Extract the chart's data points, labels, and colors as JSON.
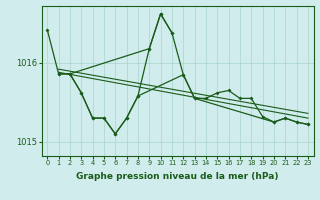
{
  "xlabel": "Graphe pression niveau de la mer (hPa)",
  "background_color": "#d1ecec",
  "grid_color": "#a8d5cc",
  "line_color": "#1a5c1a",
  "x_ticks": [
    0,
    1,
    2,
    3,
    4,
    5,
    6,
    7,
    8,
    9,
    10,
    11,
    12,
    13,
    14,
    15,
    16,
    17,
    18,
    19,
    20,
    21,
    22,
    23
  ],
  "ylim": [
    1014.82,
    1016.72
  ],
  "yticks": [
    1015.0,
    1016.0
  ],
  "series1_x": [
    0,
    1,
    2,
    9,
    10,
    11
  ],
  "series1_y": [
    1016.42,
    1015.86,
    1015.86,
    1016.18,
    1016.62,
    1016.38
  ],
  "series2_x": [
    1,
    2,
    3,
    4,
    5,
    6,
    7,
    8,
    9,
    10,
    11,
    12,
    13,
    20,
    21,
    22,
    23
  ],
  "series2_y": [
    1015.86,
    1015.86,
    1015.62,
    1015.3,
    1015.3,
    1015.1,
    1015.3,
    1015.58,
    1016.18,
    1016.62,
    1016.38,
    1015.85,
    1015.55,
    1015.25,
    1015.3,
    1015.25,
    1015.22
  ],
  "series3_x": [
    2,
    3,
    4,
    5,
    6,
    7,
    8,
    12,
    13,
    14,
    15,
    16,
    17,
    18,
    19,
    20,
    21,
    22,
    23
  ],
  "series3_y": [
    1015.86,
    1015.62,
    1015.3,
    1015.3,
    1015.1,
    1015.3,
    1015.58,
    1015.85,
    1015.55,
    1015.55,
    1015.62,
    1015.65,
    1015.55,
    1015.55,
    1015.32,
    1015.25,
    1015.3,
    1015.25,
    1015.22
  ],
  "trend1_x": [
    1,
    23
  ],
  "trend1_y": [
    1015.88,
    1015.3
  ],
  "trend2_x": [
    1,
    23
  ],
  "trend2_y": [
    1015.92,
    1015.36
  ]
}
